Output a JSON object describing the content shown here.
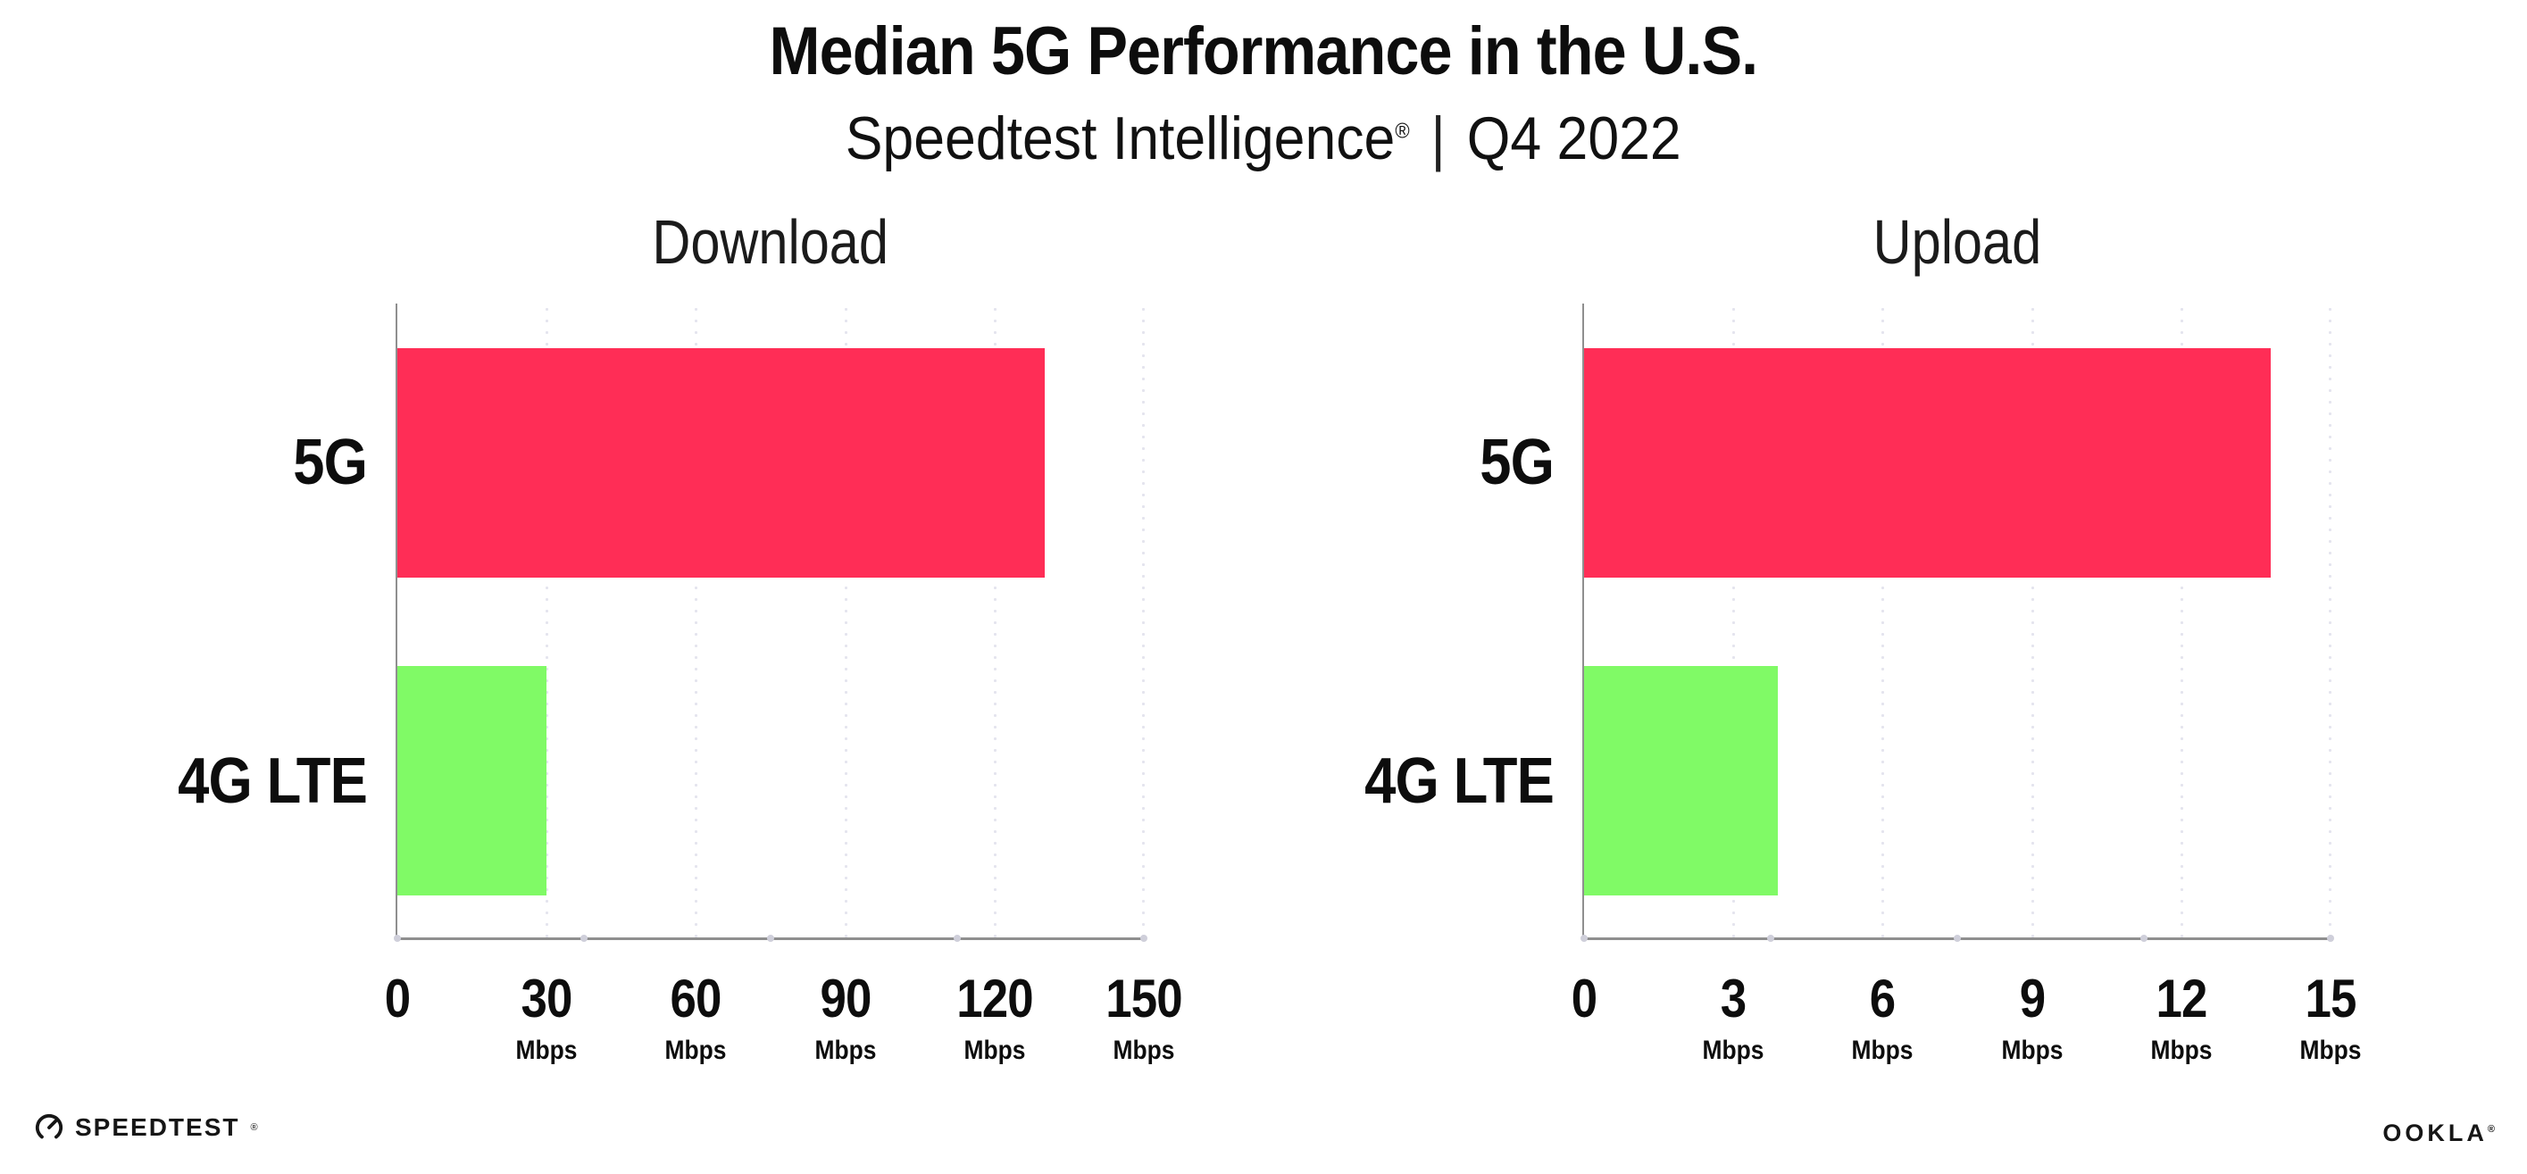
{
  "header": {
    "title": "Median 5G Performance in the U.S.",
    "subtitle": {
      "brand": "Speedtest Intelligence",
      "registered_mark": "®",
      "divider": "|",
      "period": "Q4 2022"
    }
  },
  "chart_data": [
    {
      "type": "bar",
      "orientation": "horizontal",
      "title": "Download",
      "categories": [
        "5G",
        "4G LTE"
      ],
      "values": [
        130,
        30
      ],
      "unit": "Mbps",
      "xlim": [
        0,
        150
      ],
      "xticks": [
        0,
        30,
        60,
        90,
        120,
        150
      ],
      "bar_colors": [
        "#FF2D56",
        "#80FA66"
      ],
      "grid": "dotted-vertical-gridlines",
      "legend": "none"
    },
    {
      "type": "bar",
      "orientation": "horizontal",
      "title": "Upload",
      "categories": [
        "5G",
        "4G LTE"
      ],
      "values": [
        13.8,
        3.9
      ],
      "unit": "Mbps",
      "xlim": [
        0,
        15
      ],
      "xticks": [
        0,
        3,
        6,
        9,
        12,
        15
      ],
      "bar_colors": [
        "#FF2D56",
        "#80FA66"
      ],
      "grid": "dotted-vertical-gridlines",
      "legend": "none"
    }
  ],
  "footer": {
    "speedtest_wordmark": "SPEEDTEST",
    "speedtest_mark": "®",
    "ookla_wordmark": "OOKLA",
    "ookla_mark": "®"
  },
  "colors": {
    "bar_5g": "#FF2D56",
    "bar_4g_lte": "#80FA66",
    "axis": "#8F8F8F",
    "gridline_dots": "#E4E4EE",
    "text": "#0D0D0D",
    "background": "#FFFFFF"
  }
}
